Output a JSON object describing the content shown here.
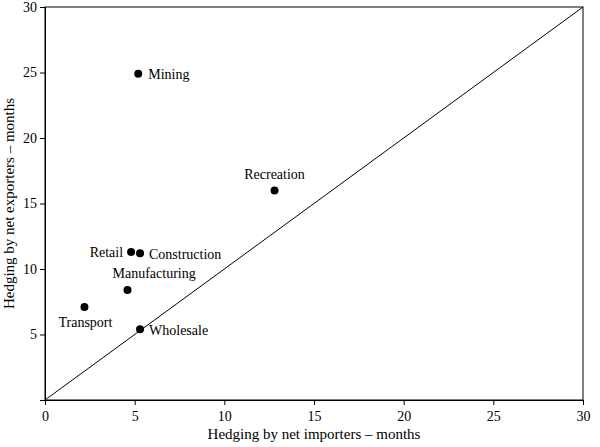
{
  "chart_data": {
    "type": "scatter",
    "x_label": "Hedging by net importers – months",
    "y_label": "Hedging by net exporters – months",
    "labels": [
      "Mining",
      "Recreation",
      "Retail",
      "Construction",
      "Manufacturing",
      "Transport",
      "Wholesale"
    ],
    "x": [
      5.2,
      12.8,
      4.8,
      5.3,
      4.6,
      2.2,
      5.3
    ],
    "values": [
      24.9,
      16,
      11.3,
      11.2,
      8.4,
      7.1,
      5.4
    ],
    "color": "#000000",
    "marker": "circle",
    "xlim": [
      0,
      30
    ],
    "ylim": [
      0,
      30
    ],
    "xticks": [
      0,
      5,
      10,
      15,
      20,
      25,
      30
    ],
    "yticks": [
      5,
      10,
      15,
      20,
      25,
      30
    ],
    "grid": false
  }
}
